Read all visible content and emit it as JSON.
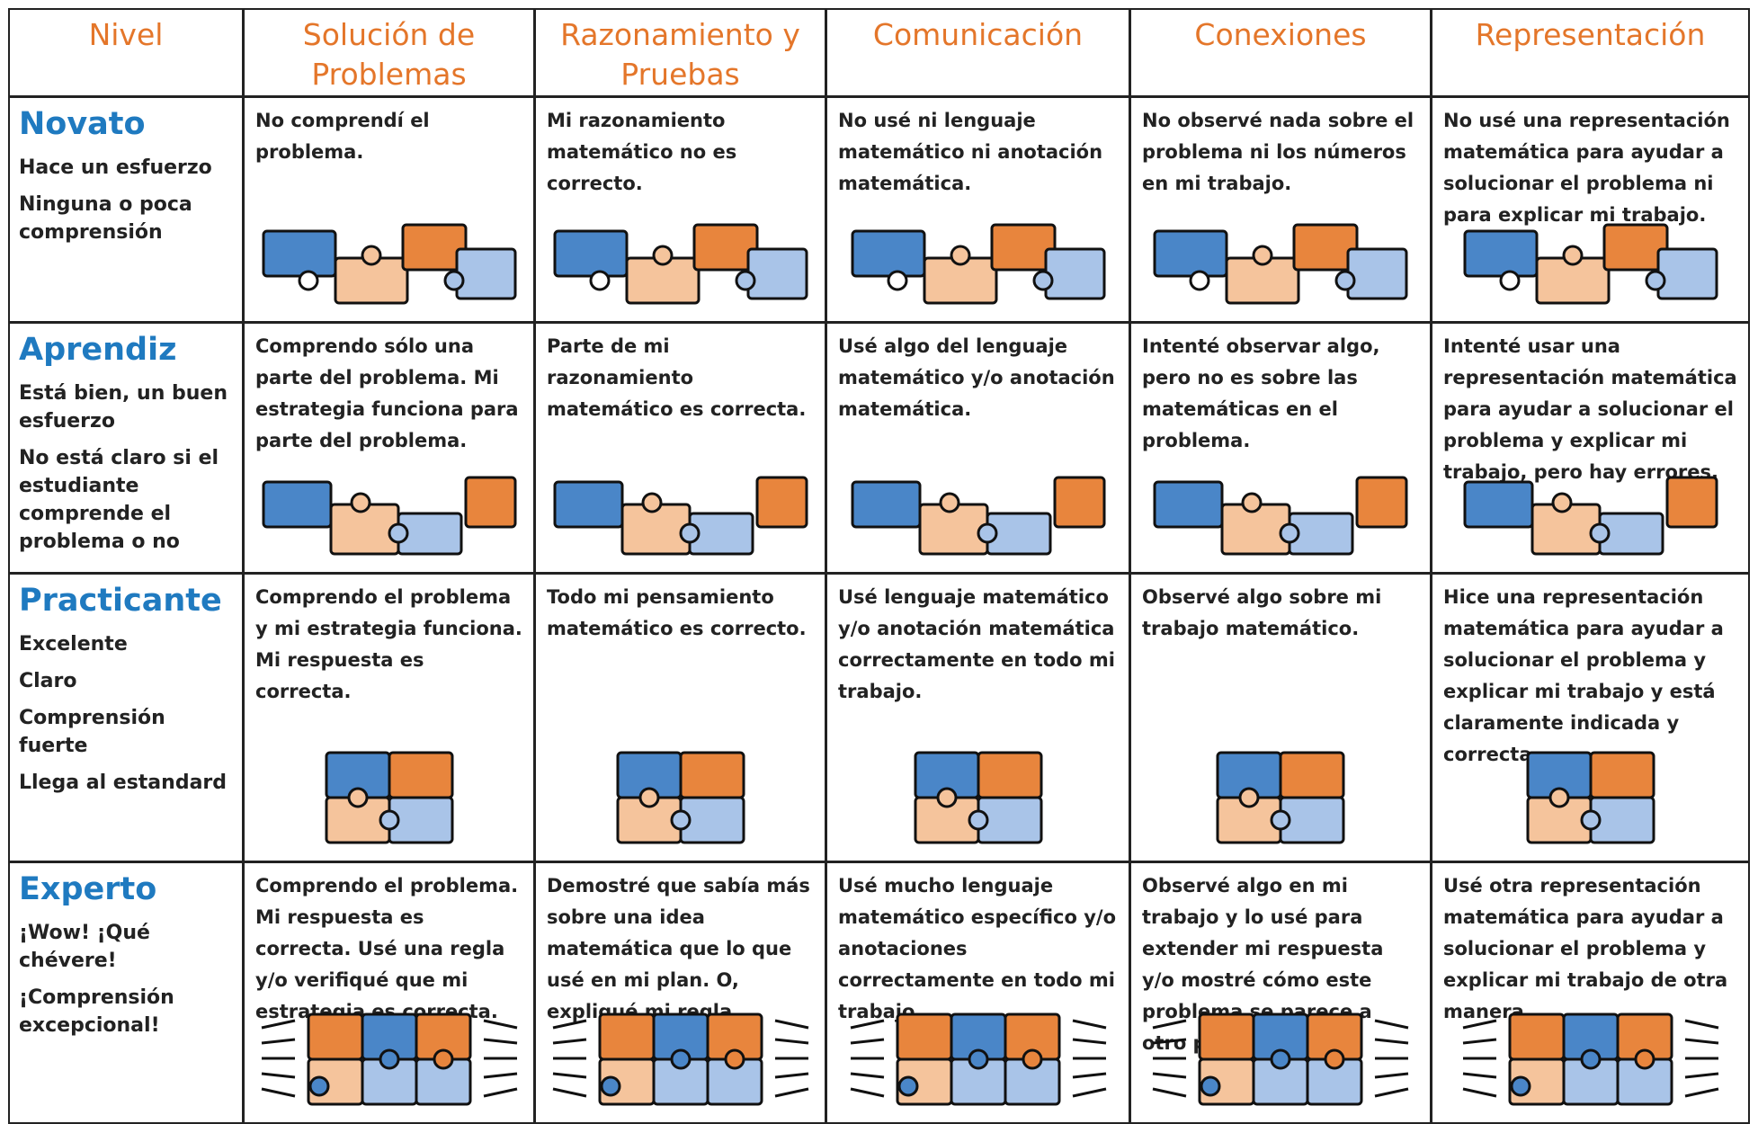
{
  "table": {
    "header": [
      "Nivel",
      "Solución de Problemas",
      "Razonamiento y Pruebas",
      "Comunicación",
      "Conexiones",
      "Representación"
    ],
    "rows": [
      {
        "level": "Novato",
        "descriptors": [
          "Hace un esfuerzo",
          "Ninguna o poca comprensión"
        ],
        "cells": [
          "No comprendí el problema.",
          "Mi razonamiento matemático no es correcto.",
          "No usé ni lenguaje matemático ni anotación matemática.",
          "No observé nada sobre el problema ni los números en mi trabajo.",
          "No usé una representación matemática para ayudar a solucionar el problema ni para explicar mi trabajo."
        ]
      },
      {
        "level": "Aprendiz",
        "descriptors": [
          "Está bien, un buen esfuerzo",
          "No está claro si el estudiante comprende el problema o no"
        ],
        "cells": [
          "Comprendo sólo una parte del problema. Mi estrategia funciona para parte del problema.",
          "Parte de mi razonamiento matemático es correcta.",
          "Usé algo del lenguaje matemático y/o anotación matemática.",
          "Intenté observar algo, pero no es sobre las matemáticas en el problema.",
          "Intenté usar una representación matemática para ayudar a solucionar el problema y explicar mi trabajo, pero hay errores."
        ]
      },
      {
        "level": "Practicante",
        "descriptors": [
          "Excelente",
          "Claro",
          "Comprensión fuerte",
          "Llega al estandard"
        ],
        "cells": [
          "Comprendo el problema y mi estrategia funciona. Mi respuesta es correcta.",
          "Todo mi pensamiento matemático es correcto.",
          "Usé lenguaje matemático y/o anotación matemática correctamente en todo mi trabajo.",
          "Observé algo sobre mi trabajo matemático.",
          "Hice una representación matemática para ayudar a solucionar el problema y explicar mi trabajo y está claramente indicada y correcta."
        ]
      },
      {
        "level": "Experto",
        "descriptors": [
          "¡Wow! ¡Qué chévere!",
          "¡Comprensión excepcional!"
        ],
        "cells": [
          "Comprendo el problema. Mi respuesta es correcta. Usé una regla y/o verifiqué que mi estrategia es correcta.",
          "Demostré que sabía más sobre una idea matemática que lo que usé en mi plan. O, expliqué mi regla.",
          "Usé mucho lenguaje matemático específico y/o anotaciones correctamente en todo mi trabajo.",
          "Observé algo en mi trabajo y lo usé para extender mi respuesta y/o mostré cómo este problema se parece a otro problema.",
          "Usé otra representación matemática para ayudar a solucionar el problema y explicar mi trabajo de otra manera."
        ]
      }
    ]
  }
}
